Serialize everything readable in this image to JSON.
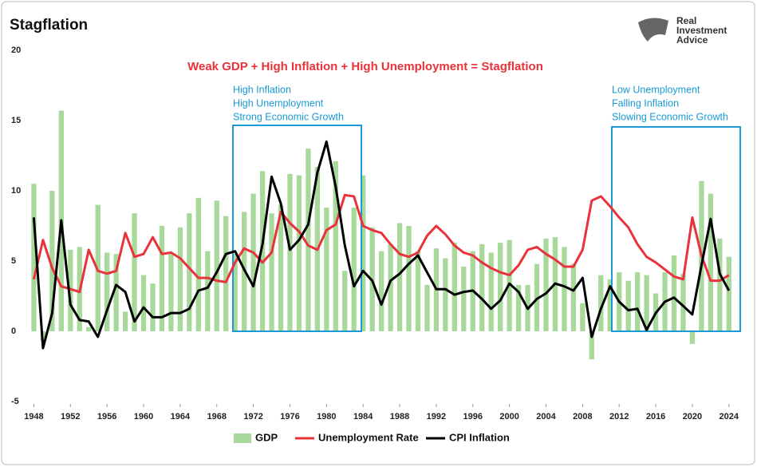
{
  "chart_data": {
    "type": "combo",
    "title": "Stagflation",
    "subtitle": "Weak GDP + High Inflation + High Unemployment = Stagflation",
    "annotations": [
      [
        "High Inflation",
        "High Unemployment",
        "Strong Economic Growth"
      ],
      [
        "Low Unemployment",
        "Falling Inflation",
        "Slowing Economic Growth"
      ]
    ],
    "brand": [
      "Real",
      "Investment",
      "Advice"
    ],
    "x": [
      1948,
      1949,
      1950,
      1951,
      1952,
      1953,
      1954,
      1955,
      1956,
      1957,
      1958,
      1959,
      1960,
      1961,
      1962,
      1963,
      1964,
      1965,
      1966,
      1967,
      1968,
      1969,
      1970,
      1971,
      1972,
      1973,
      1974,
      1975,
      1976,
      1977,
      1978,
      1979,
      1980,
      1981,
      1982,
      1983,
      1984,
      1985,
      1986,
      1987,
      1988,
      1989,
      1990,
      1991,
      1992,
      1993,
      1994,
      1995,
      1996,
      1997,
      1998,
      1999,
      2000,
      2001,
      2002,
      2003,
      2004,
      2005,
      2006,
      2007,
      2008,
      2009,
      2010,
      2011,
      2012,
      2013,
      2014,
      2015,
      2016,
      2017,
      2018,
      2019,
      2020,
      2021,
      2022,
      2023,
      2024
    ],
    "series": [
      {
        "name": "GDP",
        "type": "bar",
        "color": "#a8d99b",
        "values": [
          10.5,
          -0.7,
          10.0,
          15.7,
          5.8,
          6.0,
          0.3,
          9.0,
          5.6,
          5.5,
          1.4,
          8.4,
          4.0,
          3.4,
          7.5,
          5.5,
          7.4,
          8.4,
          9.5,
          5.7,
          9.3,
          8.2,
          5.5,
          8.5,
          9.8,
          11.4,
          8.4,
          9.0,
          11.2,
          11.1,
          13.0,
          11.7,
          8.8,
          12.1,
          4.3,
          8.8,
          11.1,
          7.4,
          5.7,
          6.2,
          7.7,
          7.5,
          5.7,
          3.3,
          5.9,
          5.2,
          6.3,
          4.6,
          5.7,
          6.2,
          5.6,
          6.3,
          6.5,
          3.3,
          3.3,
          4.8,
          6.6,
          6.7,
          6.0,
          4.8,
          2.0,
          -2.0,
          4.0,
          3.7,
          4.2,
          3.6,
          4.2,
          4.0,
          2.7,
          4.2,
          5.4,
          4.1,
          -0.9,
          10.7,
          9.8,
          6.6,
          5.3
        ]
      },
      {
        "name": "Unemployment Rate",
        "type": "line",
        "color": "#e8333b",
        "values": [
          3.7,
          6.5,
          4.5,
          3.2,
          3.0,
          2.8,
          5.8,
          4.3,
          4.1,
          4.3,
          7.0,
          5.3,
          5.5,
          6.7,
          5.5,
          5.6,
          5.2,
          4.5,
          3.8,
          3.8,
          3.6,
          3.5,
          4.9,
          5.9,
          5.6,
          4.9,
          5.6,
          8.5,
          7.7,
          7.1,
          6.1,
          5.8,
          7.2,
          7.6,
          9.7,
          9.6,
          7.5,
          7.2,
          7.0,
          6.2,
          5.5,
          5.3,
          5.6,
          6.8,
          7.5,
          6.9,
          6.1,
          5.6,
          5.4,
          4.9,
          4.5,
          4.2,
          4.0,
          4.7,
          5.8,
          6.0,
          5.5,
          5.1,
          4.6,
          4.6,
          5.8,
          9.3,
          9.6,
          8.9,
          8.1,
          7.4,
          6.2,
          5.3,
          4.9,
          4.4,
          3.9,
          3.7,
          8.1,
          5.4,
          3.6,
          3.6,
          4.0
        ]
      },
      {
        "name": "CPI Inflation",
        "type": "line",
        "color": "#000000",
        "values": [
          8.1,
          -1.2,
          1.3,
          7.9,
          1.9,
          0.8,
          0.7,
          -0.4,
          1.5,
          3.3,
          2.8,
          0.7,
          1.7,
          1.0,
          1.0,
          1.3,
          1.3,
          1.6,
          2.9,
          3.1,
          4.2,
          5.5,
          5.7,
          4.4,
          3.2,
          6.2,
          11.0,
          9.1,
          5.8,
          6.5,
          7.6,
          11.3,
          13.5,
          10.3,
          6.1,
          3.2,
          4.3,
          3.6,
          1.9,
          3.6,
          4.1,
          4.8,
          5.4,
          4.2,
          3.0,
          3.0,
          2.6,
          2.8,
          2.9,
          2.3,
          1.6,
          2.2,
          3.4,
          2.8,
          1.6,
          2.3,
          2.7,
          3.4,
          3.2,
          2.9,
          3.8,
          -0.4,
          1.6,
          3.2,
          2.1,
          1.5,
          1.6,
          0.1,
          1.3,
          2.1,
          2.4,
          1.8,
          1.2,
          4.7,
          8.0,
          4.1,
          2.9
        ]
      }
    ],
    "xlim": [
      1947.7,
      2025.5
    ],
    "xticks": [
      1948,
      1952,
      1956,
      1960,
      1964,
      1968,
      1972,
      1976,
      1980,
      1984,
      1988,
      1992,
      1996,
      2000,
      2004,
      2008,
      2012,
      2016,
      2020,
      2024
    ],
    "ylim": [
      -5,
      20
    ],
    "yticks": [
      -5,
      0,
      5,
      10,
      15,
      20
    ],
    "grid": false,
    "legend": "bottom"
  }
}
